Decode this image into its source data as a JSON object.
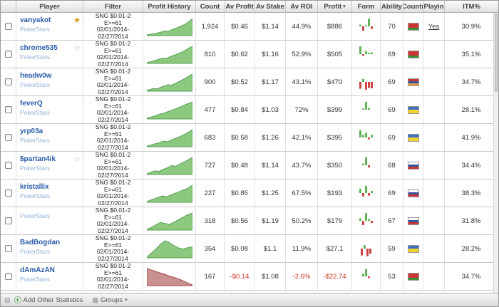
{
  "colors": {
    "player_link": "#2a5caa",
    "site_text": "#8fb0d8",
    "negative_text": "#cc3322",
    "spark_green_fill": "#8cc87e",
    "spark_green_stroke": "#55a055",
    "spark_red_fill": "#c99090",
    "spark_red_stroke": "#a84444",
    "form_green": "#5fb554",
    "form_red": "#cc4444"
  },
  "header": {
    "columns": [
      "Player",
      "Filter",
      "Profit History",
      "Count",
      "Av Profit",
      "Av Stake",
      "Av ROI",
      "Profit",
      "Form",
      "Ability",
      "Countr",
      "Playin",
      "ITM%"
    ],
    "sort_icon": "▾"
  },
  "toolbar": {
    "lock_icon": "▤",
    "add_icon": "+",
    "add_label": "Add Other Statistics",
    "groups_icon": "▦",
    "groups_label": "Groups",
    "caret_icon": "▾"
  },
  "rows": [
    {
      "player": "vanyakot",
      "site": "PokerStars",
      "badge": "trophy",
      "filter": [
        "SNG $0.01-2",
        "E>=61",
        "02/01/2014-",
        "02/27/2014"
      ],
      "count": "1,924",
      "av_profit": "$0.46",
      "av_stake": "$1.14",
      "av_roi": "44.9%",
      "profit": "$886",
      "ability": "70",
      "playing": "Yes",
      "itm": "30.9%",
      "country": "belarus",
      "flag": [
        "#cc3333",
        "#cc3333",
        "#3a8f3a"
      ],
      "trend": "up",
      "hist": [
        0,
        0.03,
        0.07,
        0.1,
        0.14,
        0.19,
        0.24,
        0.22,
        0.3,
        0.37,
        0.44,
        0.52,
        0.6,
        0.7,
        0.82,
        1
      ],
      "form": [
        0.2,
        -0.5,
        0.15,
        0.9,
        -0.3
      ]
    },
    {
      "player": "chrome535",
      "site": "PokerStars",
      "badge": "star",
      "filter": [
        "SNG $0.01-2",
        "E>=61",
        "02/01/2014-",
        "02/27/2014"
      ],
      "count": "810",
      "av_profit": "$0.62",
      "av_stake": "$1.16",
      "av_roi": "52.9%",
      "profit": "$505",
      "ability": "69",
      "playing": "",
      "itm": "35.1%",
      "country": "belarus",
      "flag": [
        "#cc3333",
        "#cc3333",
        "#3a8f3a"
      ],
      "trend": "up",
      "hist": [
        0,
        0.05,
        0.1,
        0.17,
        0.22,
        0.28,
        0.26,
        0.35,
        0.43,
        0.5,
        0.58,
        0.67,
        0.78,
        0.9,
        1
      ],
      "form": [
        0.9,
        -0.2,
        0.35,
        0.15,
        0.2
      ]
    },
    {
      "player": "headw0w",
      "site": "PokerStars",
      "badge": "",
      "filter": [
        "SNG $0.01-2",
        "E>=61",
        "02/01/2014-",
        "02/27/2014"
      ],
      "count": "900",
      "av_profit": "$0.52",
      "av_stake": "$1.17",
      "av_roi": "43.1%",
      "profit": "$470",
      "ability": "69",
      "playing": "",
      "itm": "34.7%",
      "country": "armenia",
      "flag": [
        "#cc3333",
        "#33549c",
        "#e8a33d"
      ],
      "trend": "up",
      "hist": [
        0,
        0.06,
        0.12,
        0.1,
        0.2,
        0.27,
        0.35,
        0.32,
        0.42,
        0.52,
        0.63,
        0.75,
        0.88,
        1
      ],
      "form": [
        -0.8,
        0.35,
        -0.9,
        -0.7,
        -0.75
      ]
    },
    {
      "player": "feverQ",
      "site": "PokerStars",
      "badge": "",
      "filter": [
        "SNG $0.01-2",
        "E>=61",
        "02/01/2014-",
        "02/27/2014"
      ],
      "count": "477",
      "av_profit": "$0.84",
      "av_stake": "$1.03",
      "av_roi": "72%",
      "profit": "$399",
      "ability": "69",
      "playing": "",
      "itm": "28.1%",
      "country": "ukraine",
      "flag": [
        "#3f6fc4",
        "#f2d32b"
      ],
      "trend": "up",
      "hist": [
        0,
        0.07,
        0.15,
        0.24,
        0.3,
        0.4,
        0.48,
        0.58,
        0.68,
        0.8,
        0.9,
        1
      ],
      "form": [
        0.15,
        0.9,
        0.2
      ]
    },
    {
      "player": "yrp03a",
      "site": "PokerStars",
      "badge": "",
      "filter": [
        "SNG $0.01-2",
        "E>=61",
        "02/01/2014-",
        "02/27/2014"
      ],
      "count": "683",
      "av_profit": "$0.58",
      "av_stake": "$1.26",
      "av_roi": "42.1%",
      "profit": "$395",
      "ability": "69",
      "playing": "",
      "itm": "41.9%",
      "country": "ukraine",
      "flag": [
        "#3f6fc4",
        "#f2d32b"
      ],
      "trend": "up",
      "hist": [
        0,
        0.06,
        0.14,
        0.2,
        0.3,
        0.26,
        0.38,
        0.48,
        0.58,
        0.7,
        0.84,
        1
      ],
      "form": [
        0.85,
        0.3,
        0.55,
        -0.2,
        0.3
      ]
    },
    {
      "player": "$partan4ik",
      "site": "PokerStars",
      "badge": "star",
      "filter": [
        "SNG $0.01-2",
        "E>=61",
        "02/01/2014-",
        "02/27/2014"
      ],
      "count": "727",
      "av_profit": "$0.48",
      "av_stake": "$1.14",
      "av_roi": "43.7%",
      "profit": "$350",
      "ability": "68",
      "playing": "",
      "itm": "34.4%",
      "country": "russia",
      "flag": [
        "#ffffff",
        "#33549c",
        "#cc3333"
      ],
      "trend": "up",
      "hist": [
        0,
        0.1,
        0.18,
        0.15,
        0.28,
        0.38,
        0.5,
        0.46,
        0.6,
        0.72,
        0.86,
        1
      ],
      "form": [
        0.2,
        0.95,
        -0.25
      ]
    },
    {
      "player": "kristallix",
      "site": "PokerStars",
      "badge": "",
      "filter": [
        "SNG $0.01-2",
        "E>=61",
        "02/01/2014-",
        "02/27/2014"
      ],
      "count": "227",
      "av_profit": "$0.85",
      "av_stake": "$1.25",
      "av_roi": "67.5%",
      "profit": "$193",
      "ability": "69",
      "playing": "",
      "itm": "38.3%",
      "country": "russia",
      "flag": [
        "#ffffff",
        "#33549c",
        "#cc3333"
      ],
      "trend": "up",
      "hist": [
        0,
        0.12,
        0.22,
        0.35,
        0.3,
        0.45,
        0.55,
        0.68,
        0.8,
        1
      ],
      "form": [
        0.5,
        -0.4,
        0.85,
        -0.3,
        0.25
      ]
    },
    {
      "player": "",
      "site": "PokerStars",
      "badge": "",
      "filter": [
        "SNG $0.01-2",
        "E>=61",
        "02/01/2014-",
        "02/27/2014"
      ],
      "count": "318",
      "av_profit": "$0.56",
      "av_stake": "$1.19",
      "av_roi": "50.2%",
      "profit": "$179",
      "ability": "67",
      "playing": "",
      "itm": "31.8%",
      "country": "russia",
      "flag": [
        "#ffffff",
        "#33549c",
        "#cc3333"
      ],
      "trend": "up",
      "hist": [
        0,
        0.12,
        0.28,
        0.42,
        0.36,
        0.3,
        0.45,
        0.6,
        0.75,
        0.9,
        1
      ],
      "form": [
        0.3,
        -0.5,
        0.9,
        0.2,
        -0.25
      ]
    },
    {
      "player": "BadBogdan",
      "site": "PokerStars",
      "badge": "",
      "filter": [
        "SNG $0.01-2",
        "E>=61",
        "02/01/2014-",
        "02/27/2014"
      ],
      "count": "354",
      "av_profit": "$0.08",
      "av_stake": "$1.1",
      "av_roi": "11.9%",
      "profit": "$27.1",
      "ability": "59",
      "playing": "",
      "itm": "28.2%",
      "country": "ukraine",
      "flag": [
        "#3f6fc4",
        "#f2d32b"
      ],
      "trend": "up",
      "hist": [
        0,
        0.25,
        0.5,
        0.78,
        1,
        0.88,
        0.7,
        0.55,
        0.5,
        0.58,
        0.62
      ],
      "form": [
        -0.8,
        0.4,
        -0.9,
        -0.6
      ]
    },
    {
      "player": "dAmAzAN",
      "site": "PokerStars",
      "badge": "",
      "filter": [
        "SNG $0.01-2",
        "E>=61",
        "02/01/2014-",
        "02/27/2014"
      ],
      "count": "167",
      "av_profit": "-$0.14",
      "av_stake": "$1.08",
      "av_roi": "-2.6%",
      "profit": "-$22.74",
      "ability": "53",
      "playing": "",
      "itm": "34.7%",
      "country": "belarus",
      "flag": [
        "#cc3333",
        "#cc3333",
        "#3a8f3a"
      ],
      "trend": "down",
      "hist": [
        1,
        0.92,
        0.84,
        0.75,
        0.68,
        0.58,
        0.5,
        0.42,
        0.33,
        0.22,
        0.1,
        0
      ],
      "form": [
        0.3,
        0.85,
        -0.2
      ]
    }
  ]
}
